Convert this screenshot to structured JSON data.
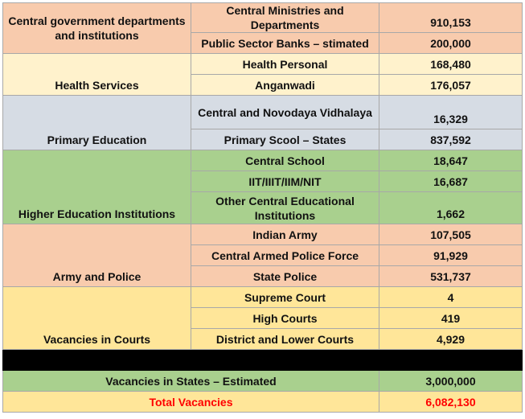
{
  "sections": [
    {
      "category": "Central government departments and institutions",
      "rows": [
        {
          "name": "Central Ministries and Departments",
          "value": "910,153"
        },
        {
          "name": "Public Sector Banks – stimated",
          "value": "200,000"
        }
      ]
    },
    {
      "category": "Health Services",
      "rows": [
        {
          "name": "Health Personal",
          "value": "168,480"
        },
        {
          "name": "Anganwadi",
          "value": "176,057"
        }
      ]
    },
    {
      "category": "Primary Education",
      "rows": [
        {
          "name": "Central and Novodaya Vidhalaya",
          "value": "16,329"
        },
        {
          "name": "Primary Scool – States",
          "value": "837,592"
        }
      ]
    },
    {
      "category": "Higher Education Institutions",
      "rows": [
        {
          "name": "Central School",
          "value": "18,647"
        },
        {
          "name": "IIT/IIIT/IIM/NIT",
          "value": "16,687"
        },
        {
          "name": "Other Central Educational Institutions",
          "value": "1,662"
        }
      ]
    },
    {
      "category": "Army and Police",
      "rows": [
        {
          "name": "Indian Army",
          "value": "107,505"
        },
        {
          "name": "Central Armed Police Force",
          "value": "91,929"
        },
        {
          "name": "State Police",
          "value": "531,737"
        }
      ]
    },
    {
      "category": "Vacancies in Courts",
      "rows": [
        {
          "name": "Supreme Court",
          "value": "4"
        },
        {
          "name": "High Courts",
          "value": "419"
        },
        {
          "name": "District and Lower Courts",
          "value": "4,929"
        }
      ]
    }
  ],
  "states_row": {
    "label": "Vacancies in States – Estimated",
    "value": "3,000,000"
  },
  "total_row": {
    "label": "Total Vacancies",
    "value": "6,082,130"
  },
  "colors": {
    "peach": "#f8cbad",
    "cream": "#fff2cc",
    "grey": "#d6dce4",
    "green": "#a9d08e",
    "yellow": "#ffe699",
    "total_text": "#ff0000"
  }
}
